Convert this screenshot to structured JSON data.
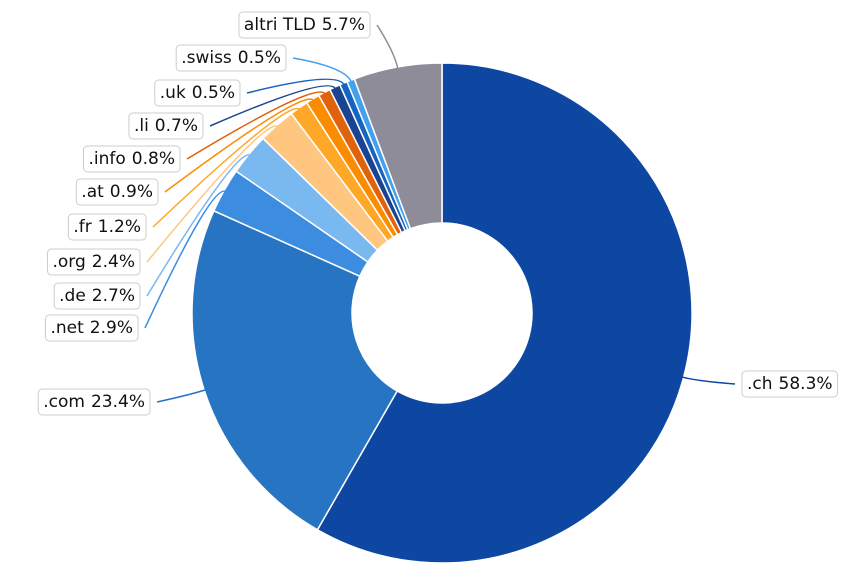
{
  "chart_data": {
    "type": "pie",
    "categories": [
      ".ch",
      ".com",
      ".net",
      ".de",
      ".org",
      ".fr",
      ".at",
      ".info",
      ".li",
      ".uk",
      ".swiss",
      "altri TLD"
    ],
    "values": [
      58.3,
      23.4,
      2.9,
      2.7,
      2.4,
      1.2,
      0.9,
      0.8,
      0.7,
      0.5,
      0.5,
      5.7
    ],
    "value_labels": [
      "58.3%",
      "23.4%",
      "2.9%",
      "2.7%",
      "2.4%",
      "1.2%",
      "0.9%",
      "0.8%",
      "0.7%",
      "0.5%",
      "0.5%",
      "5.7%"
    ],
    "colors": [
      "#0d47a1",
      "#2674c2",
      "#3c8de0",
      "#7ab8f0",
      "#ffc680",
      "#ffa726",
      "#fb8c00",
      "#e0620a",
      "#1a4391",
      "#1565c0",
      "#42a0ee",
      "#8e8c99"
    ]
  }
}
